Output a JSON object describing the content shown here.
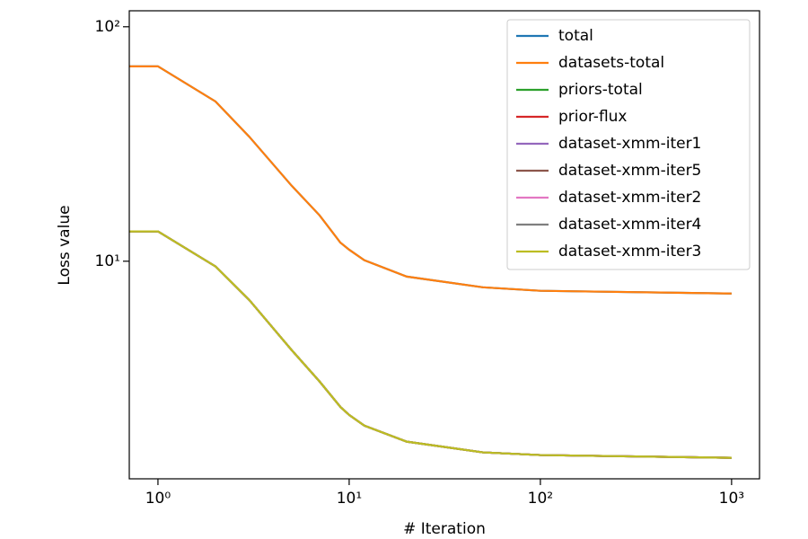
{
  "chart_data": {
    "type": "line",
    "xlabel": "# Iteration",
    "ylabel": "Loss value",
    "xscale": "log",
    "yscale": "log",
    "xlim": [
      0.708,
      1400
    ],
    "ylim": [
      1.18,
      117
    ],
    "xticks": [
      {
        "value": 1,
        "label": "10⁰"
      },
      {
        "value": 10,
        "label": "10¹"
      },
      {
        "value": 100,
        "label": "10²"
      },
      {
        "value": 1000,
        "label": "10³"
      }
    ],
    "yticks": [
      {
        "value": 10,
        "label": "10¹"
      },
      {
        "value": 100,
        "label": "10²"
      }
    ],
    "legend": "upper right",
    "x": [
      0.708,
      1,
      2,
      3,
      5,
      7,
      9,
      10,
      12,
      20,
      50,
      100,
      1000
    ],
    "series": [
      {
        "name": "total",
        "color": "#1f77b4",
        "values": [
          67.8,
          67.8,
          48,
          34,
          21,
          15.7,
          12.0,
          11.2,
          10.1,
          8.6,
          7.74,
          7.48,
          7.28
        ]
      },
      {
        "name": "datasets-total",
        "color": "#ff7f0e",
        "values": [
          67.8,
          67.8,
          48,
          34,
          21,
          15.7,
          12.0,
          11.2,
          10.1,
          8.6,
          7.74,
          7.48,
          7.28
        ]
      },
      {
        "name": "priors-total",
        "color": "#2ca02c",
        "values": [
          13.4,
          13.4,
          9.5,
          6.84,
          4.18,
          3.07,
          2.39,
          2.21,
          1.99,
          1.7,
          1.53,
          1.49,
          1.45
        ]
      },
      {
        "name": "prior-flux",
        "color": "#d62728",
        "values": [
          13.4,
          13.4,
          9.5,
          6.84,
          4.18,
          3.07,
          2.39,
          2.21,
          1.99,
          1.7,
          1.53,
          1.49,
          1.45
        ]
      },
      {
        "name": "dataset-xmm-iter1",
        "color": "#9467bd",
        "values": [
          13.4,
          13.4,
          9.5,
          6.84,
          4.18,
          3.07,
          2.39,
          2.21,
          1.99,
          1.7,
          1.53,
          1.49,
          1.45
        ]
      },
      {
        "name": "dataset-xmm-iter5",
        "color": "#8c564b",
        "values": [
          13.4,
          13.4,
          9.5,
          6.84,
          4.18,
          3.07,
          2.39,
          2.21,
          1.99,
          1.7,
          1.53,
          1.49,
          1.45
        ]
      },
      {
        "name": "dataset-xmm-iter2",
        "color": "#e377c2",
        "values": [
          13.4,
          13.4,
          9.5,
          6.84,
          4.18,
          3.07,
          2.39,
          2.21,
          1.99,
          1.7,
          1.53,
          1.49,
          1.45
        ]
      },
      {
        "name": "dataset-xmm-iter4",
        "color": "#7f7f7f",
        "values": [
          13.4,
          13.4,
          9.5,
          6.84,
          4.18,
          3.07,
          2.39,
          2.21,
          1.99,
          1.7,
          1.53,
          1.49,
          1.45
        ]
      },
      {
        "name": "dataset-xmm-iter3",
        "color": "#bcbd22",
        "values": [
          13.4,
          13.4,
          9.5,
          6.84,
          4.18,
          3.07,
          2.39,
          2.21,
          1.99,
          1.7,
          1.53,
          1.49,
          1.45
        ]
      }
    ]
  }
}
